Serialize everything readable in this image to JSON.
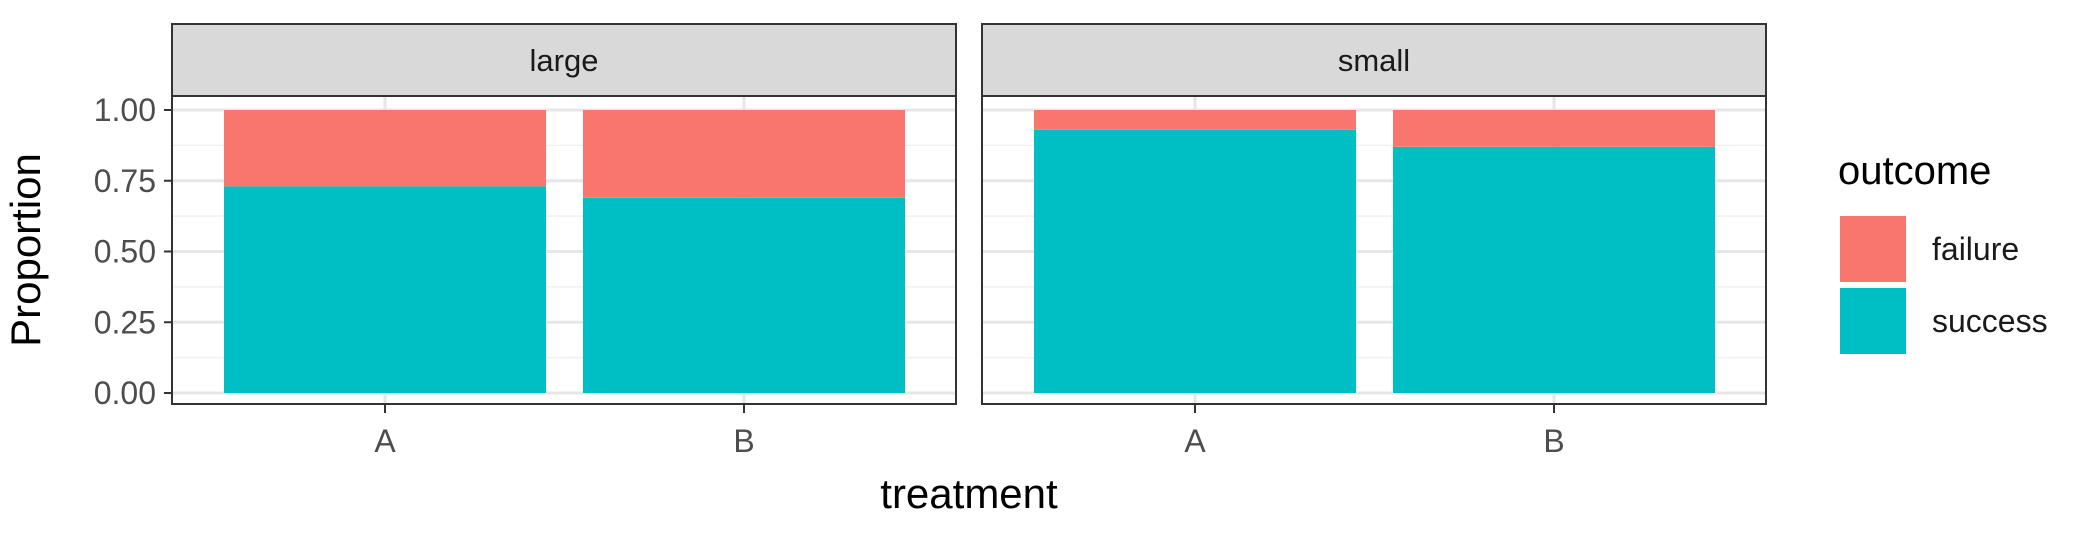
{
  "chart_data": {
    "type": "bar",
    "stacked": true,
    "position": "fill",
    "facet_variable": "size",
    "facets": [
      "large",
      "small"
    ],
    "categories": [
      "A",
      "B"
    ],
    "series": [
      {
        "name": "failure",
        "color": "#F8766D",
        "values": {
          "large": [
            0.27,
            0.31
          ],
          "small": [
            0.07,
            0.13
          ]
        }
      },
      {
        "name": "success",
        "color": "#00BFC4",
        "values": {
          "large": [
            0.73,
            0.69
          ],
          "small": [
            0.93,
            0.87
          ]
        }
      }
    ],
    "xlabel": "treatment",
    "ylabel": "Proportion",
    "yticks": [
      "0.00",
      "0.25",
      "0.50",
      "0.75",
      "1.00"
    ],
    "ylim": [
      0,
      1
    ],
    "legend": {
      "title": "outcome",
      "position": "right",
      "entries": [
        "failure",
        "success"
      ]
    },
    "grid": true,
    "theme": "bw"
  }
}
